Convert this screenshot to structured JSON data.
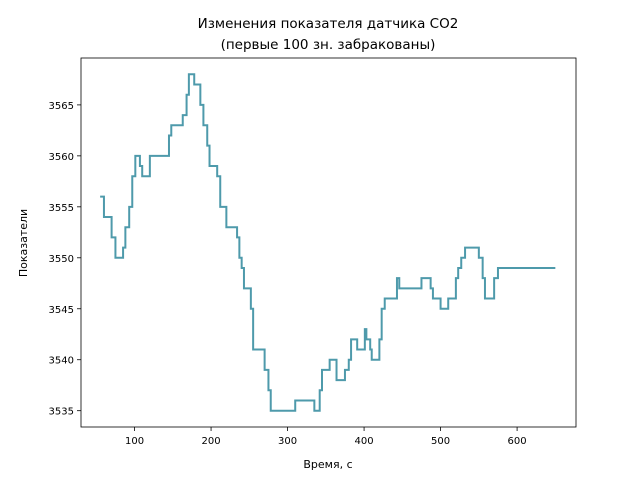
{
  "chart_data": {
    "type": "line",
    "title_line1": "Изменения показателя датчика CO2",
    "title_line2": "(первые 100 зн. забракованы)",
    "xlabel": "Время, с",
    "ylabel": "Показатели",
    "xlim": [
      30,
      677
    ],
    "ylim": [
      3533.4,
      3569.6
    ],
    "x_ticks": [
      100,
      200,
      300,
      400,
      500,
      600
    ],
    "y_ticks": [
      3535,
      3540,
      3545,
      3550,
      3555,
      3560,
      3565
    ],
    "grid": false,
    "line_style": "steps",
    "series": [
      {
        "color": "#4e9aab",
        "points": [
          [
            55,
            3556
          ],
          [
            60,
            3556
          ],
          [
            60,
            3554
          ],
          [
            70,
            3554
          ],
          [
            70,
            3552
          ],
          [
            75,
            3552
          ],
          [
            75,
            3550
          ],
          [
            85,
            3550
          ],
          [
            85,
            3551
          ],
          [
            88,
            3551
          ],
          [
            88,
            3553
          ],
          [
            93,
            3553
          ],
          [
            93,
            3555
          ],
          [
            97,
            3555
          ],
          [
            97,
            3558
          ],
          [
            101,
            3558
          ],
          [
            101,
            3560
          ],
          [
            107,
            3560
          ],
          [
            107,
            3559
          ],
          [
            110,
            3559
          ],
          [
            110,
            3558
          ],
          [
            120,
            3558
          ],
          [
            120,
            3560
          ],
          [
            145,
            3560
          ],
          [
            145,
            3562
          ],
          [
            148,
            3562
          ],
          [
            148,
            3563
          ],
          [
            163,
            3563
          ],
          [
            163,
            3564
          ],
          [
            168,
            3564
          ],
          [
            168,
            3566
          ],
          [
            171,
            3566
          ],
          [
            171,
            3568
          ],
          [
            178,
            3568
          ],
          [
            178,
            3567
          ],
          [
            186,
            3567
          ],
          [
            186,
            3565
          ],
          [
            190,
            3565
          ],
          [
            190,
            3563
          ],
          [
            195,
            3563
          ],
          [
            195,
            3561
          ],
          [
            198,
            3561
          ],
          [
            198,
            3559
          ],
          [
            208,
            3559
          ],
          [
            208,
            3558
          ],
          [
            212,
            3558
          ],
          [
            212,
            3555
          ],
          [
            220,
            3555
          ],
          [
            220,
            3553
          ],
          [
            234,
            3553
          ],
          [
            234,
            3552
          ],
          [
            237,
            3552
          ],
          [
            237,
            3550
          ],
          [
            240,
            3550
          ],
          [
            240,
            3549
          ],
          [
            243,
            3549
          ],
          [
            243,
            3547
          ],
          [
            252,
            3547
          ],
          [
            252,
            3545
          ],
          [
            255,
            3545
          ],
          [
            255,
            3541
          ],
          [
            270,
            3541
          ],
          [
            270,
            3539
          ],
          [
            275,
            3539
          ],
          [
            275,
            3537
          ],
          [
            278,
            3537
          ],
          [
            278,
            3535
          ],
          [
            310,
            3535
          ],
          [
            310,
            3536
          ],
          [
            335,
            3536
          ],
          [
            335,
            3535
          ],
          [
            342,
            3535
          ],
          [
            342,
            3537
          ],
          [
            345,
            3537
          ],
          [
            345,
            3539
          ],
          [
            355,
            3539
          ],
          [
            355,
            3540
          ],
          [
            364,
            3540
          ],
          [
            364,
            3538
          ],
          [
            375,
            3538
          ],
          [
            375,
            3539
          ],
          [
            380,
            3539
          ],
          [
            380,
            3540
          ],
          [
            383,
            3540
          ],
          [
            383,
            3542
          ],
          [
            391,
            3542
          ],
          [
            391,
            3541
          ],
          [
            401,
            3541
          ],
          [
            401,
            3543
          ],
          [
            403,
            3543
          ],
          [
            403,
            3542
          ],
          [
            408,
            3542
          ],
          [
            408,
            3541
          ],
          [
            410,
            3541
          ],
          [
            410,
            3540
          ],
          [
            420,
            3540
          ],
          [
            420,
            3542
          ],
          [
            423,
            3542
          ],
          [
            423,
            3545
          ],
          [
            427,
            3545
          ],
          [
            427,
            3546
          ],
          [
            443,
            3546
          ],
          [
            443,
            3548
          ],
          [
            446,
            3548
          ],
          [
            446,
            3547
          ],
          [
            475,
            3547
          ],
          [
            475,
            3548
          ],
          [
            487,
            3548
          ],
          [
            487,
            3547
          ],
          [
            490,
            3547
          ],
          [
            490,
            3546
          ],
          [
            500,
            3546
          ],
          [
            500,
            3545
          ],
          [
            510,
            3545
          ],
          [
            510,
            3546
          ],
          [
            520,
            3546
          ],
          [
            520,
            3548
          ],
          [
            523,
            3548
          ],
          [
            523,
            3549
          ],
          [
            527,
            3549
          ],
          [
            527,
            3550
          ],
          [
            532,
            3550
          ],
          [
            532,
            3551
          ],
          [
            550,
            3551
          ],
          [
            550,
            3550
          ],
          [
            555,
            3550
          ],
          [
            555,
            3548
          ],
          [
            558,
            3548
          ],
          [
            558,
            3546
          ],
          [
            570,
            3546
          ],
          [
            570,
            3548
          ],
          [
            575,
            3548
          ],
          [
            575,
            3549
          ],
          [
            650,
            3549
          ]
        ]
      }
    ]
  }
}
